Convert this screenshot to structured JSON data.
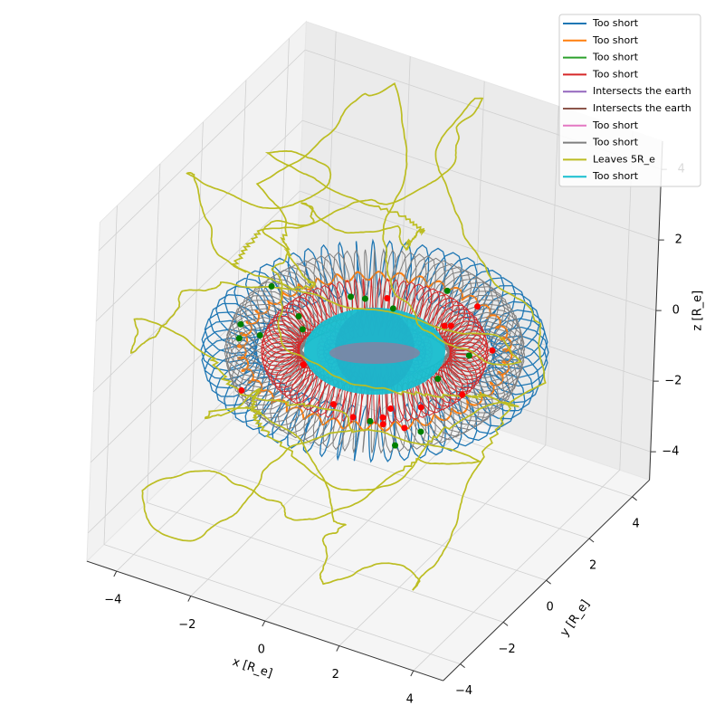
{
  "chart_data": {
    "type": "line3d",
    "xlabel": "x [R_e]",
    "ylabel": "y [R_e]",
    "zlabel": "z [R_e]",
    "xlim": [
      -4.8,
      4.8
    ],
    "ylim": [
      -4.8,
      4.8
    ],
    "zlim": [
      -4.8,
      4.8
    ],
    "xticks": [
      {
        "value": -4,
        "label": "−4"
      },
      {
        "value": -2,
        "label": "−2"
      },
      0,
      2,
      4
    ],
    "yticks": [
      {
        "value": -4,
        "label": "−4"
      },
      {
        "value": -2,
        "label": "−2"
      },
      0,
      2,
      4
    ],
    "zticks": [
      {
        "value": -4,
        "label": "−4"
      },
      {
        "value": -2,
        "label": "−2"
      },
      0,
      2,
      4
    ],
    "grid": true,
    "legend": "upper right",
    "series": [
      {
        "name": "Too short",
        "color": "#1f77b4"
      },
      {
        "name": "Too short",
        "color": "#ff7f0e"
      },
      {
        "name": "Too short",
        "color": "#2ca02c"
      },
      {
        "name": "Too short",
        "color": "#d62728"
      },
      {
        "name": "Intersects the earth",
        "color": "#9467bd"
      },
      {
        "name": "Intersects the earth",
        "color": "#8c564b"
      },
      {
        "name": "Too short",
        "color": "#e377c2"
      },
      {
        "name": "Too short",
        "color": "#7f7f7f"
      },
      {
        "name": "Leaves 5R_e",
        "color": "#bcbd22"
      },
      {
        "name": "Too short",
        "color": "#17becf"
      }
    ]
  }
}
